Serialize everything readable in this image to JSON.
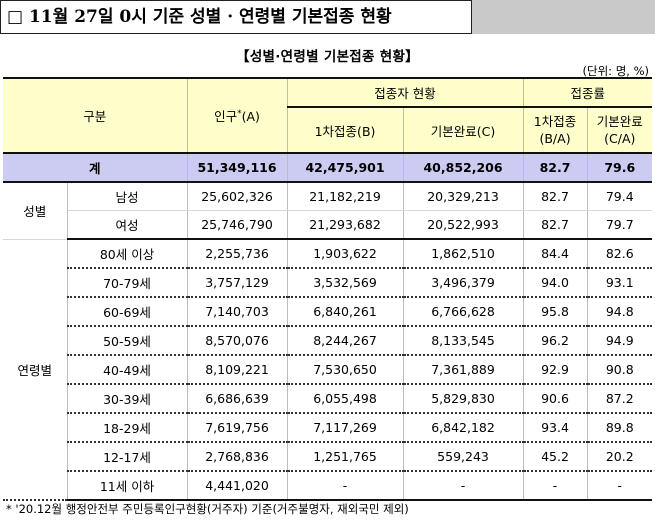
{
  "title": "□ 11월 27일 0시 기준 성별 · 연령별 기본접종 현황",
  "subtitle": "【성별·연령별 기본접종 현황】",
  "unit": "(단위: 명, %)",
  "headers": {
    "category": "구분",
    "population": "인구",
    "population_sup": "*",
    "population_suffix": "(A)",
    "vaccinated_group": "접종자 현황",
    "first_dose": "1차접종(B)",
    "completed": "기본완료(C)",
    "rate_group": "접종률",
    "first_rate_line1": "1차접종",
    "first_rate_line2": "(B/A)",
    "complete_rate_line1": "기본완료",
    "complete_rate_line2": "(C/A)"
  },
  "total": {
    "label": "계",
    "population": "51,349,116",
    "first_dose": "42,475,901",
    "completed": "40,852,206",
    "first_rate": "82.7",
    "complete_rate": "79.6"
  },
  "sex_group": {
    "label": "성별",
    "rows": [
      {
        "label": "남성",
        "population": "25,602,326",
        "first_dose": "21,182,219",
        "completed": "20,329,213",
        "first_rate": "82.7",
        "complete_rate": "79.4"
      },
      {
        "label": "여성",
        "population": "25,746,790",
        "first_dose": "21,293,682",
        "completed": "20,522,993",
        "first_rate": "82.7",
        "complete_rate": "79.7"
      }
    ]
  },
  "age_group": {
    "label": "연령별",
    "rows": [
      {
        "label": "80세 이상",
        "population": "2,255,736",
        "first_dose": "1,903,622",
        "completed": "1,862,510",
        "first_rate": "84.4",
        "complete_rate": "82.6"
      },
      {
        "label": "70-79세",
        "population": "3,757,129",
        "first_dose": "3,532,569",
        "completed": "3,496,379",
        "first_rate": "94.0",
        "complete_rate": "93.1"
      },
      {
        "label": "60-69세",
        "population": "7,140,703",
        "first_dose": "6,840,261",
        "completed": "6,766,628",
        "first_rate": "95.8",
        "complete_rate": "94.8"
      },
      {
        "label": "50-59세",
        "population": "8,570,076",
        "first_dose": "8,244,267",
        "completed": "8,133,545",
        "first_rate": "96.2",
        "complete_rate": "94.9"
      },
      {
        "label": "40-49세",
        "population": "8,109,221",
        "first_dose": "7,530,650",
        "completed": "7,361,889",
        "first_rate": "92.9",
        "complete_rate": "90.8"
      },
      {
        "label": "30-39세",
        "population": "6,686,639",
        "first_dose": "6,055,498",
        "completed": "5,829,830",
        "first_rate": "90.6",
        "complete_rate": "87.2"
      },
      {
        "label": "18-29세",
        "population": "7,619,756",
        "first_dose": "7,117,269",
        "completed": "6,842,182",
        "first_rate": "93.4",
        "complete_rate": "89.8"
      },
      {
        "label": "12-17세",
        "population": "2,768,836",
        "first_dose": "1,251,765",
        "completed": "559,243",
        "first_rate": "45.2",
        "complete_rate": "20.2"
      },
      {
        "label": "11세 이하",
        "population": "4,441,020",
        "first_dose": "-",
        "completed": "-",
        "first_rate": "-",
        "complete_rate": "-"
      }
    ]
  },
  "footnote": "* '20.12월 행정안전부 주민등록인구현황(거주자) 기준(거주불명자, 재외국민 제외)",
  "colors": {
    "header_bg": "#ffffcc",
    "total_bg": "#ccccf2",
    "title_block_gray": "#c9c9c9"
  }
}
